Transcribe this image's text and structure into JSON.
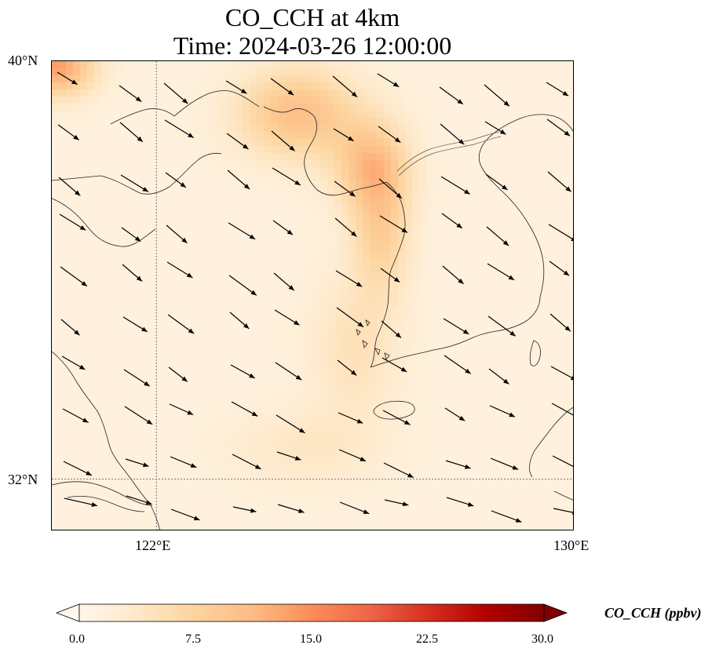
{
  "title": {
    "line1": "CO_CCH at 4km",
    "line2": "Time: 2024-03-26 12:00:00"
  },
  "map": {
    "lon_range": [
      120,
      130
    ],
    "lat_range": [
      31,
      40
    ],
    "lat_labels": [
      "40°N",
      "32°N"
    ],
    "lon_labels": [
      "122°E",
      "130°E"
    ],
    "gridlines": {
      "lon": 122,
      "lat": 32
    }
  },
  "colorbar": {
    "label": "CO_CCH (ppbv)",
    "colormap": "OrRd",
    "ticks": [
      "0.0",
      "7.5",
      "15.0",
      "22.5",
      "30.0"
    ],
    "range": [
      0,
      30
    ],
    "extend": "both",
    "colors": [
      "#fff7ec",
      "#fee8c8",
      "#fdd49e",
      "#fdbb84",
      "#fc8d59",
      "#ef6548",
      "#d7301f",
      "#b30000",
      "#7f0000"
    ]
  },
  "field": {
    "background_value": 1.5,
    "plumes": [
      {
        "lon": 124.7,
        "lat": 39.0,
        "value": 9,
        "sx": 0.8,
        "sy": 0.6
      },
      {
        "lon": 126.1,
        "lat": 38.0,
        "value": 8,
        "sx": 0.5,
        "sy": 0.6
      },
      {
        "lon": 126.3,
        "lat": 36.8,
        "value": 6.5,
        "sx": 0.4,
        "sy": 0.9
      },
      {
        "lon": 120.1,
        "lat": 39.9,
        "value": 12,
        "sx": 0.5,
        "sy": 0.4
      },
      {
        "lon": 125.8,
        "lat": 34.5,
        "value": 3.5,
        "sx": 0.6,
        "sy": 1.0
      },
      {
        "lon": 124.8,
        "lat": 32.6,
        "value": 2.5,
        "sx": 1.0,
        "sy": 0.5
      }
    ]
  }
}
